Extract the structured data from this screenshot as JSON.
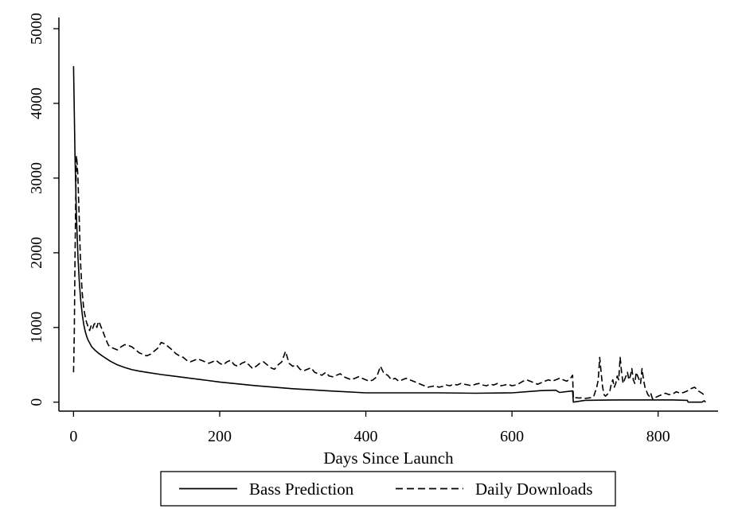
{
  "chart_data": {
    "type": "line",
    "xlabel": "Days Since Launch",
    "ylabel": "",
    "xlim": [
      -20,
      882
    ],
    "ylim": [
      -120,
      5150
    ],
    "xticks": [
      0,
      200,
      400,
      600,
      800
    ],
    "yticks": [
      0,
      1000,
      2000,
      3000,
      4000,
      5000
    ],
    "xtick_labels": [
      "0",
      "200",
      "400",
      "600",
      "800"
    ],
    "ytick_labels": [
      "0",
      "1000",
      "2000",
      "3000",
      "4000",
      "5000"
    ],
    "grid": false,
    "legend_position": "bottom",
    "series": [
      {
        "name": "Bass Prediction",
        "style": "solid",
        "color": "#000000",
        "x": [
          0,
          2,
          4,
          6,
          8,
          10,
          12,
          14,
          16,
          18,
          20,
          25,
          30,
          35,
          40,
          50,
          60,
          70,
          80,
          90,
          100,
          120,
          140,
          160,
          180,
          200,
          250,
          300,
          350,
          400,
          450,
          500,
          550,
          600,
          640,
          660,
          665,
          683,
          684,
          700,
          750,
          800,
          820,
          840,
          841,
          860,
          863,
          865
        ],
        "y": [
          4500,
          3300,
          2500,
          1950,
          1600,
          1350,
          1170,
          1040,
          950,
          880,
          830,
          740,
          690,
          650,
          615,
          550,
          500,
          465,
          435,
          415,
          400,
          370,
          345,
          320,
          295,
          270,
          220,
          180,
          150,
          125,
          125,
          125,
          120,
          125,
          155,
          160,
          130,
          150,
          0,
          25,
          30,
          30,
          30,
          25,
          0,
          0,
          20,
          0
        ]
      },
      {
        "name": "Daily Downloads",
        "style": "dashed",
        "color": "#000000",
        "x": [
          0,
          1,
          2,
          3,
          4,
          5,
          6,
          7,
          8,
          9,
          10,
          11,
          12,
          13,
          14,
          15,
          16,
          17,
          18,
          19,
          20,
          22,
          24,
          26,
          28,
          30,
          32,
          34,
          36,
          38,
          40,
          42,
          44,
          46,
          48,
          50,
          55,
          60,
          65,
          70,
          75,
          80,
          85,
          90,
          95,
          100,
          105,
          110,
          115,
          120,
          125,
          130,
          135,
          140,
          145,
          150,
          155,
          160,
          165,
          170,
          175,
          180,
          185,
          190,
          195,
          200,
          205,
          210,
          215,
          220,
          225,
          230,
          235,
          240,
          245,
          250,
          255,
          260,
          265,
          270,
          275,
          280,
          285,
          290,
          295,
          300,
          305,
          310,
          315,
          320,
          325,
          330,
          335,
          340,
          345,
          350,
          355,
          360,
          365,
          370,
          375,
          380,
          385,
          390,
          395,
          400,
          405,
          410,
          415,
          420,
          425,
          430,
          435,
          440,
          445,
          450,
          455,
          460,
          465,
          470,
          475,
          480,
          485,
          490,
          495,
          500,
          505,
          510,
          515,
          520,
          525,
          530,
          535,
          540,
          545,
          550,
          555,
          560,
          565,
          570,
          575,
          580,
          585,
          590,
          595,
          600,
          605,
          610,
          615,
          620,
          625,
          630,
          635,
          640,
          645,
          650,
          655,
          660,
          665,
          670,
          675,
          680,
          683,
          684,
          688,
          692,
          696,
          700,
          704,
          708,
          712,
          716,
          718,
          720,
          722,
          724,
          726,
          728,
          730,
          732,
          734,
          736,
          738,
          740,
          742,
          744,
          746,
          748,
          750,
          752,
          754,
          756,
          758,
          760,
          762,
          764,
          766,
          768,
          770,
          772,
          774,
          776,
          778,
          780,
          782,
          784,
          786,
          788,
          790,
          792,
          794,
          796,
          800,
          805,
          810,
          815,
          820,
          825,
          830,
          835,
          840,
          845,
          850,
          855,
          860,
          865
        ],
        "y": [
          400,
          900,
          1900,
          2700,
          3300,
          3200,
          3000,
          2700,
          2400,
          2050,
          1800,
          1600,
          1450,
          1350,
          1250,
          1200,
          1150,
          1100,
          1060,
          1040,
          1000,
          960,
          1020,
          980,
          1040,
          1060,
          1000,
          1080,
          1050,
          1000,
          950,
          900,
          850,
          800,
          760,
          740,
          720,
          700,
          740,
          770,
          760,
          740,
          700,
          660,
          640,
          620,
          640,
          680,
          720,
          800,
          780,
          740,
          700,
          650,
          620,
          600,
          560,
          540,
          560,
          580,
          560,
          540,
          520,
          540,
          560,
          520,
          500,
          540,
          560,
          500,
          480,
          520,
          540,
          500,
          450,
          480,
          520,
          540,
          500,
          460,
          440,
          500,
          540,
          680,
          520,
          480,
          500,
          440,
          420,
          440,
          460,
          400,
          380,
          360,
          400,
          350,
          340,
          360,
          380,
          340,
          320,
          300,
          320,
          340,
          320,
          300,
          280,
          300,
          340,
          480,
          380,
          360,
          300,
          320,
          280,
          300,
          320,
          300,
          280,
          260,
          240,
          220,
          200,
          210,
          220,
          200,
          210,
          230,
          220,
          240,
          230,
          250,
          240,
          230,
          220,
          240,
          250,
          230,
          220,
          240,
          230,
          250,
          220,
          230,
          240,
          220,
          230,
          250,
          280,
          300,
          280,
          260,
          240,
          260,
          280,
          300,
          280,
          300,
          320,
          300,
          280,
          320,
          360,
          50,
          60,
          55,
          60,
          50,
          55,
          60,
          80,
          200,
          300,
          600,
          400,
          200,
          100,
          80,
          100,
          120,
          150,
          250,
          300,
          200,
          250,
          350,
          300,
          600,
          400,
          250,
          300,
          350,
          400,
          300,
          350,
          450,
          300,
          250,
          400,
          350,
          300,
          250,
          450,
          300,
          200,
          150,
          100,
          80,
          120,
          50,
          40,
          60,
          80,
          100,
          120,
          100,
          110,
          140,
          120,
          130,
          150,
          180,
          200,
          150,
          120,
          80
        ]
      }
    ]
  }
}
